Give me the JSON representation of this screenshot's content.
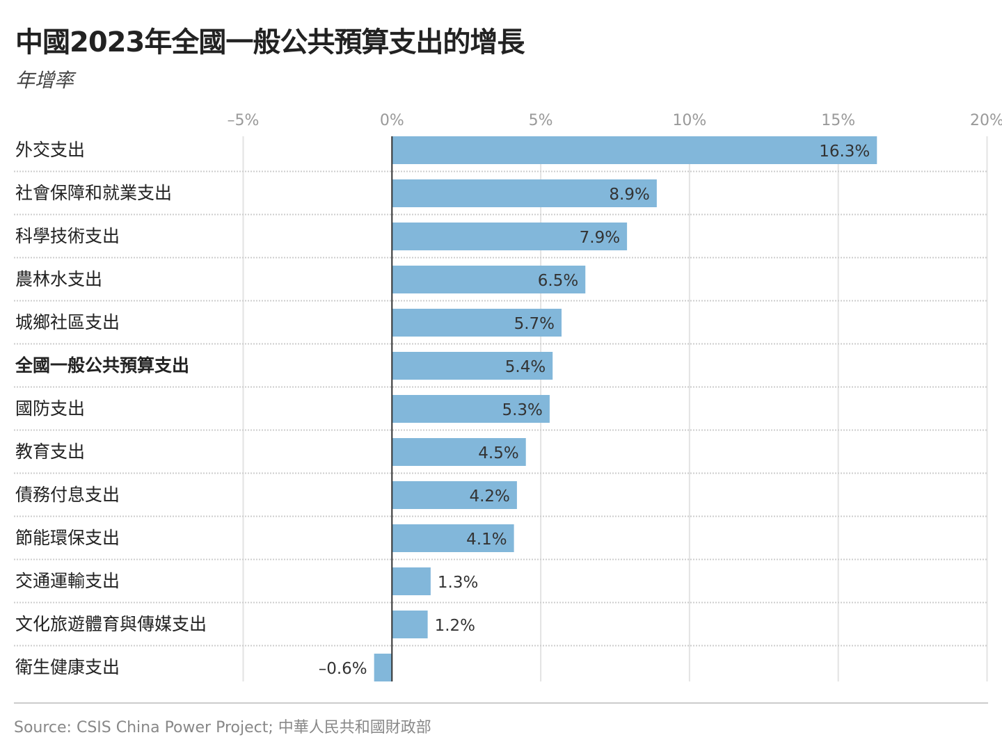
{
  "title": "中國2023年全國一般公共預算支出的增長",
  "subtitle": "年增率",
  "source": "Source: CSIS China Power Project; 中華人民共和國財政部",
  "colors": {
    "bar": "#82b7da",
    "zero_line": "#333333",
    "grid": "#e3e3e3"
  },
  "chart_data": {
    "type": "bar",
    "orientation": "horizontal",
    "categories": [
      "外交支出",
      "社會保障和就業支出",
      "科學技術支出",
      "農林水支出",
      "城鄉社區支出",
      "全國一般公共預算支出",
      "國防支出",
      "教育支出",
      "債務付息支出",
      "節能環保支出",
      "交通運輸支出",
      "文化旅遊體育與傳媒支出",
      "衛生健康支出"
    ],
    "values": [
      16.3,
      8.9,
      7.9,
      6.5,
      5.7,
      5.4,
      5.3,
      4.5,
      4.2,
      4.1,
      1.3,
      1.2,
      -0.6
    ],
    "data_labels": [
      "16.3%",
      "8.9%",
      "7.9%",
      "6.5%",
      "5.7%",
      "5.4%",
      "5.3%",
      "4.5%",
      "4.2%",
      "4.1%",
      "1.3%",
      "1.2%",
      "–0.6%"
    ],
    "highlight_category": "全國一般公共預算支出",
    "xlim": [
      -5,
      20
    ],
    "xticks": [
      -5,
      0,
      5,
      10,
      15,
      20
    ],
    "xtick_labels": [
      "–5%",
      "0%",
      "5%",
      "10%",
      "15%",
      "20%"
    ],
    "axis_position": "top",
    "grid": true,
    "title": "中國2023年全國一般公共預算支出的增長",
    "subtitle": "年增率"
  }
}
